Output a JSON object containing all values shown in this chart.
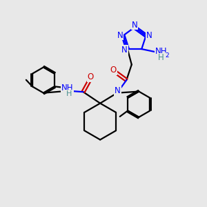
{
  "bg_color": "#e8e8e8",
  "atom_colors": {
    "N": "#0000ff",
    "O": "#cc0000",
    "C": "#000000",
    "H": "#4a9090"
  },
  "line_width": 1.6,
  "figsize": [
    3.0,
    3.0
  ],
  "dpi": 100
}
